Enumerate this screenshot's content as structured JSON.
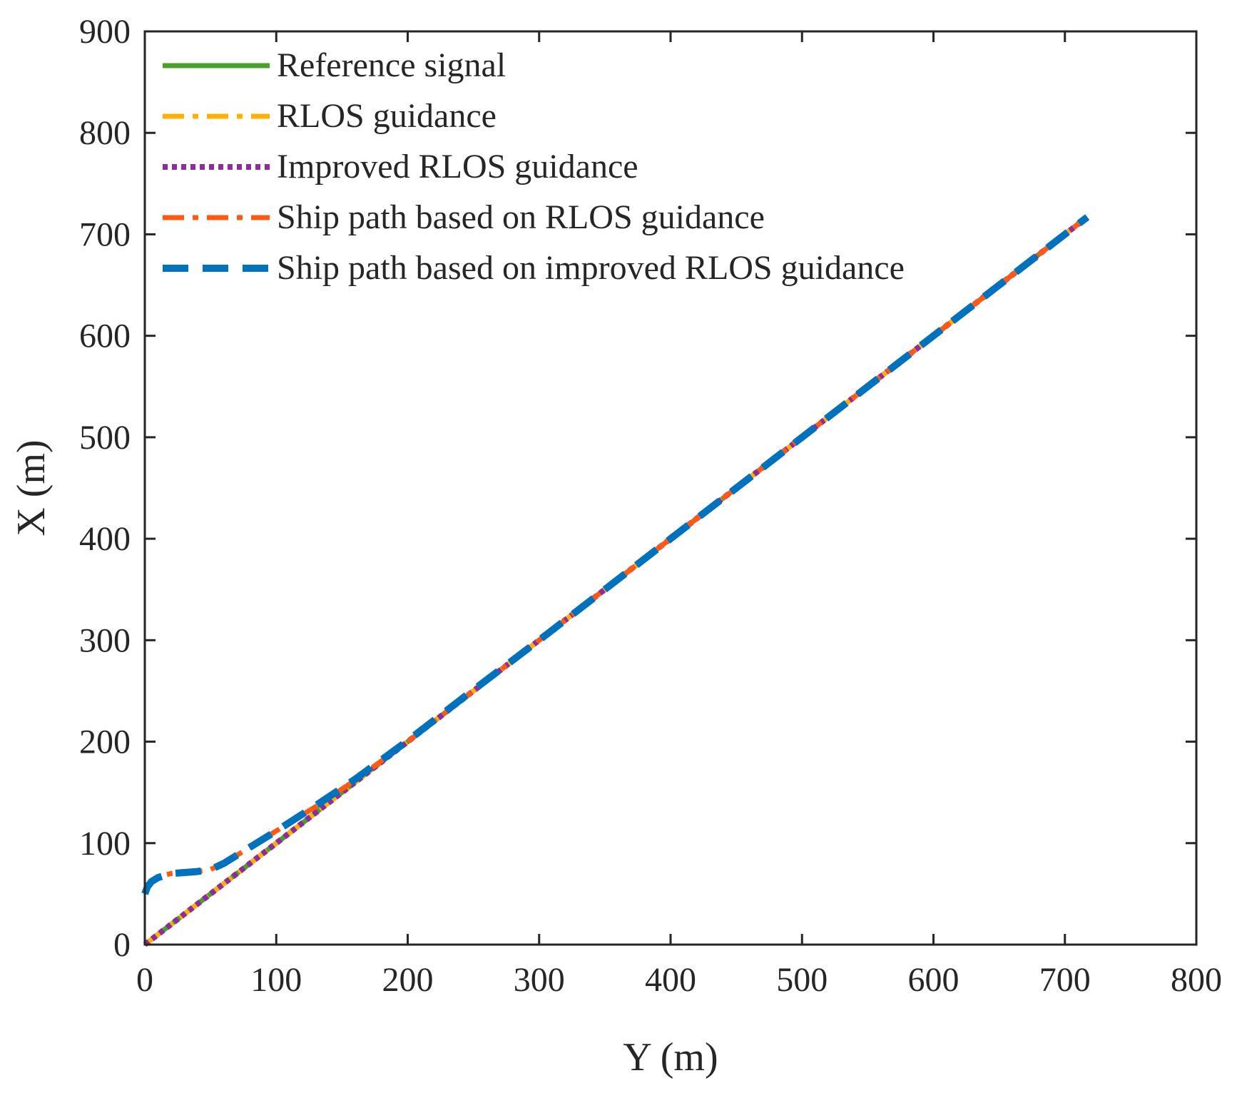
{
  "chart_data": {
    "type": "line",
    "title": "",
    "xlabel": "Y (m)",
    "ylabel": "X (m)",
    "xlim": [
      0,
      800
    ],
    "ylim": [
      0,
      900
    ],
    "xticks": [
      "0",
      "100",
      "200",
      "300",
      "400",
      "500",
      "600",
      "700",
      "800"
    ],
    "yticks": [
      "0",
      "100",
      "200",
      "300",
      "400",
      "500",
      "600",
      "700",
      "800",
      "900"
    ],
    "grid": false,
    "legend": "top-left",
    "series": [
      {
        "name": "Reference signal",
        "color": "#4aa12a",
        "style": "solid",
        "x": [
          0,
          100,
          200,
          300,
          400,
          500,
          600,
          700,
          717
        ],
        "y": [
          0,
          100,
          200,
          300,
          400,
          500,
          600,
          700,
          717
        ]
      },
      {
        "name": "RLOS guidance",
        "color": "#ffb000",
        "style": "dash-dot",
        "x": [
          0,
          100,
          200,
          300,
          400,
          500,
          600,
          700,
          717
        ],
        "y": [
          0,
          100,
          200,
          300,
          400,
          500,
          600,
          700,
          717
        ]
      },
      {
        "name": "Improved RLOS guidance",
        "color": "#8e2c9c",
        "style": "dotted",
        "x": [
          0,
          100,
          200,
          300,
          400,
          500,
          600,
          700,
          717
        ],
        "y": [
          0,
          100,
          200,
          300,
          400,
          500,
          600,
          700,
          717
        ]
      },
      {
        "name": "Ship path based on RLOS guidance",
        "color": "#ff5a14",
        "style": "dash-dot",
        "x": [
          0,
          2,
          5,
          10,
          20,
          30,
          40,
          50,
          60,
          80,
          100,
          130,
          160,
          200,
          250,
          300,
          400,
          500,
          600,
          700,
          717
        ],
        "y": [
          52,
          58,
          63,
          67,
          70,
          71,
          72,
          74,
          80,
          96,
          112,
          136,
          162,
          200,
          250,
          300,
          400,
          500,
          600,
          700,
          717
        ]
      },
      {
        "name": "Ship path based on improved RLOS guidance",
        "color": "#0072bd",
        "style": "dashed",
        "x": [
          0,
          2,
          5,
          10,
          20,
          30,
          40,
          50,
          60,
          80,
          100,
          130,
          160,
          200,
          250,
          300,
          400,
          500,
          600,
          700,
          717
        ],
        "y": [
          50,
          57,
          62,
          66,
          70,
          71,
          72,
          74,
          80,
          96,
          112,
          137,
          163,
          201,
          251,
          300,
          400,
          500,
          600,
          700,
          717
        ]
      }
    ]
  }
}
